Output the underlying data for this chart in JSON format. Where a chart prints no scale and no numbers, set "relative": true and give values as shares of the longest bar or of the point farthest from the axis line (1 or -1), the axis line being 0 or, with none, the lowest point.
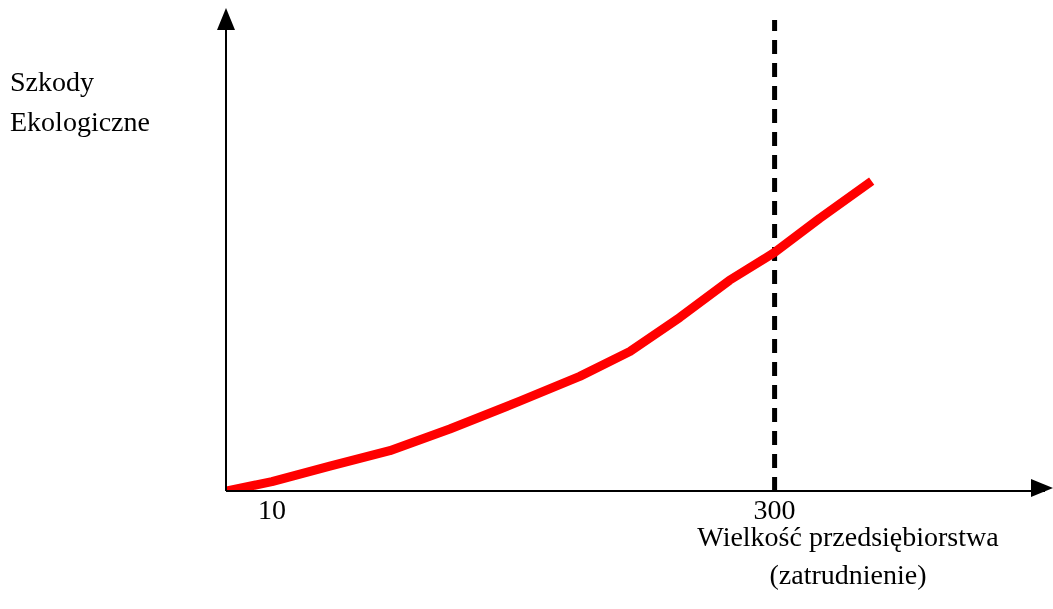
{
  "chart_data": {
    "type": "line",
    "xlabel": "Wielkość przedsiębiorstwa\n(zatrudnienie)",
    "ylabel": "Szkody\nEkologiczne",
    "relative": true,
    "x": [
      -16.5,
      10,
      43.4,
      78,
      112.6,
      153,
      187.6,
      216.5,
      245.3,
      274,
      300,
      326,
      356
    ],
    "series": [
      {
        "color": "#ff0000",
        "values": [
          0,
          0.03,
          0.08,
          0.13,
          0.2,
          0.29,
          0.37,
          0.45,
          0.56,
          0.68,
          0.77,
          0.88,
          1
        ]
      }
    ],
    "xlim": [
      -16.5,
      456
    ],
    "xticks": [
      10,
      300
    ],
    "ref_lines": [
      {
        "axis": "x",
        "value": 300,
        "color": "#000000",
        "line_style": "dashed"
      }
    ],
    "grid": false,
    "legend": false,
    "marker": "none",
    "line_style": "solid"
  }
}
